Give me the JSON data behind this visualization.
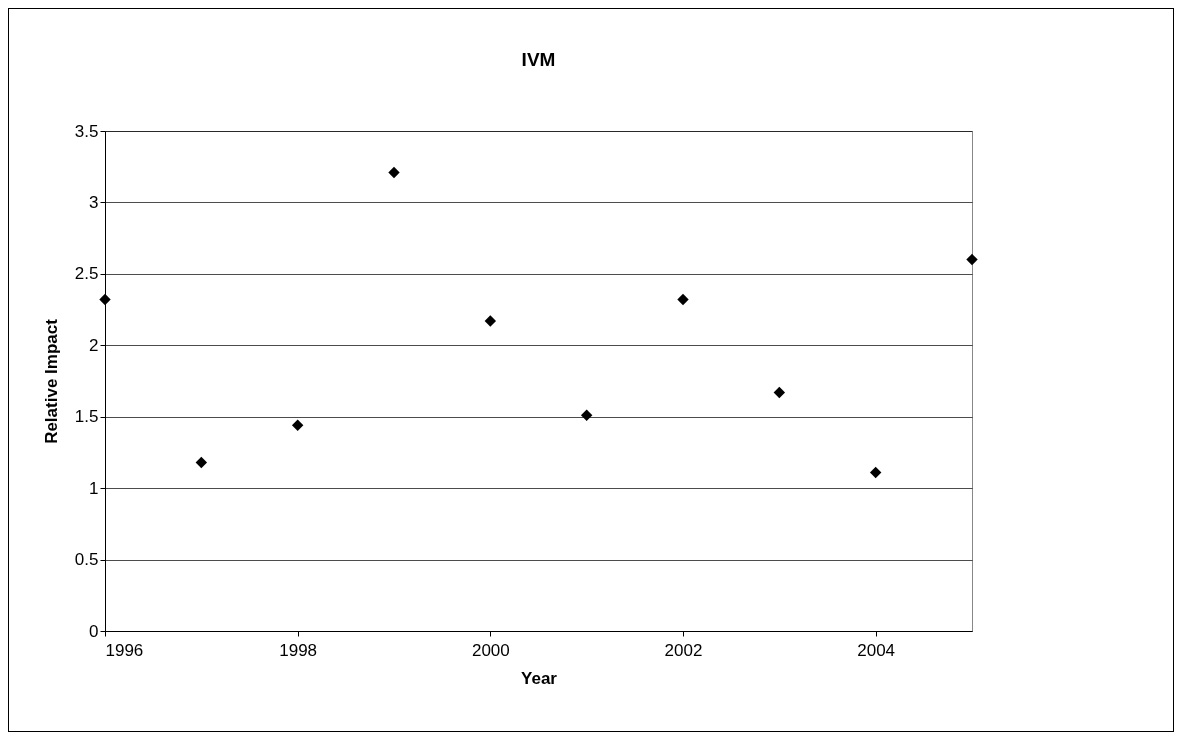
{
  "chart_data": {
    "type": "scatter",
    "title": "IVM",
    "xlabel": "Year",
    "ylabel": "Relative Impact",
    "x": [
      1996,
      1997,
      1998,
      1999,
      2000,
      2001,
      2002,
      2003,
      2004,
      2005
    ],
    "series": [
      {
        "color": "#000000",
        "values": [
          2.32,
          1.18,
          1.44,
          3.21,
          2.17,
          1.51,
          2.32,
          1.67,
          1.11,
          2.6
        ]
      }
    ],
    "xlim": [
      1996,
      2005
    ],
    "xticks": [
      1996,
      1998,
      2000,
      2002,
      2004
    ],
    "ylim": [
      0,
      3.5
    ],
    "yticks": [
      0,
      0.5,
      1,
      1.5,
      2,
      2.5,
      3,
      3.5
    ],
    "grid": "y",
    "marker": "diamond"
  }
}
